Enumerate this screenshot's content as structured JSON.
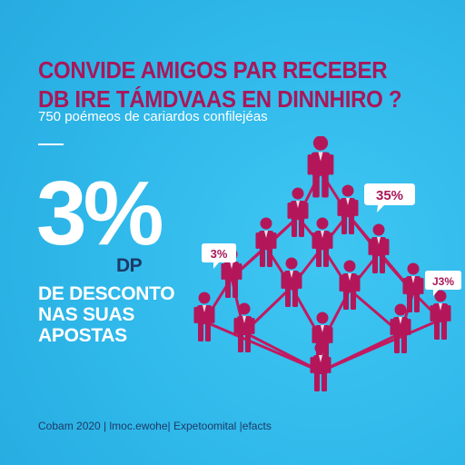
{
  "headline": {
    "line1": "CONVIDE AMIGOS PAR RECEBER",
    "line2": "DB IRE TÁMDVAAS EN DINNHIRO ?"
  },
  "subtitle": "750 poémeos de cariardos confilejéas",
  "offer": {
    "percent": "3%",
    "dp": "DP",
    "line1": "DE DESCONTO",
    "line2": "NAS SUAS",
    "line3": "APOSTAS"
  },
  "bubbles": {
    "top_right": "35%",
    "left": "3%",
    "right": "J3%"
  },
  "footer": "Cobam 2020 | lmoc.ewohe| Expetoomital |efacts",
  "colors": {
    "background": "#2fb8ea",
    "accent": "#a8175a",
    "figure": "#b3175a",
    "dark_text": "#1d3a66",
    "white": "#ffffff"
  }
}
